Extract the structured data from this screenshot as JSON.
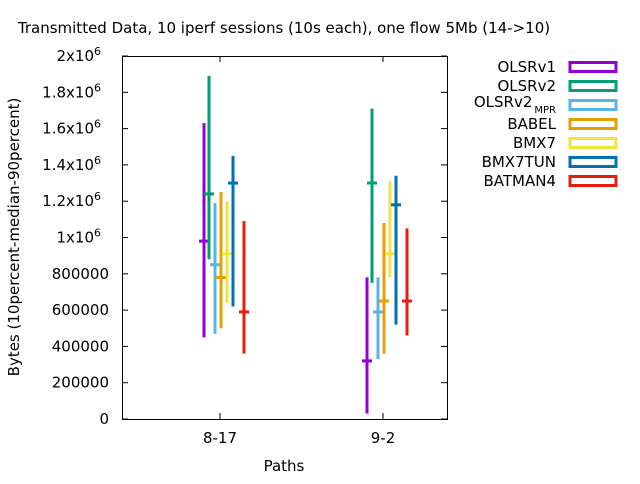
{
  "chart_data": {
    "type": "errorbar",
    "title": "Transmitted Data, 10 iperf sessions (10s each), one flow 5Mb (14->10)",
    "xlabel": "Paths",
    "ylabel": "Bytes (10percent-median-90percent)",
    "categories": [
      "8-17",
      "9-2"
    ],
    "ylim": [
      0,
      2000000
    ],
    "yticks": [
      {
        "value": 0,
        "label": "0"
      },
      {
        "value": 200000,
        "label": "200000"
      },
      {
        "value": 400000,
        "label": "400000"
      },
      {
        "value": 600000,
        "label": "600000"
      },
      {
        "value": 800000,
        "label": "800000"
      },
      {
        "value": 1000000,
        "label": "1x10",
        "exp": "6"
      },
      {
        "value": 1200000,
        "label": "1.2x10",
        "exp": "6"
      },
      {
        "value": 1400000,
        "label": "1.4x10",
        "exp": "6"
      },
      {
        "value": 1600000,
        "label": "1.6x10",
        "exp": "6"
      },
      {
        "value": 1800000,
        "label": "1.8x10",
        "exp": "6"
      },
      {
        "value": 2000000,
        "label": "2x10",
        "exp": "6"
      }
    ],
    "grid": false,
    "legend_position": "outside-right",
    "series": [
      {
        "name": "OLSRv1",
        "color": "#9400d3",
        "low": [
          450000,
          30000
        ],
        "median": [
          980000,
          320000
        ],
        "high": [
          1630000,
          780000
        ]
      },
      {
        "name": "OLSRv2",
        "color": "#009e73",
        "low": [
          880000,
          750000
        ],
        "median": [
          1240000,
          1300000
        ],
        "high": [
          1890000,
          1710000
        ]
      },
      {
        "name": "OLSRv2",
        "sub": "MPR",
        "color": "#56b4e9",
        "low": [
          470000,
          330000
        ],
        "median": [
          850000,
          590000
        ],
        "high": [
          1190000,
          780000
        ]
      },
      {
        "name": "BABEL",
        "color": "#e69f00",
        "low": [
          500000,
          360000
        ],
        "median": [
          780000,
          650000
        ],
        "high": [
          1250000,
          1080000
        ]
      },
      {
        "name": "BMX7",
        "color": "#f0e442",
        "low": [
          640000,
          780000
        ],
        "median": [
          910000,
          910000
        ],
        "high": [
          1200000,
          1310000
        ]
      },
      {
        "name": "BMX7TUN",
        "color": "#0072b2",
        "low": [
          620000,
          520000
        ],
        "median": [
          1300000,
          1180000
        ],
        "high": [
          1450000,
          1340000
        ]
      },
      {
        "name": "BATMAN4",
        "color": "#e51e10",
        "low": [
          360000,
          460000
        ],
        "median": [
          590000,
          650000
        ],
        "high": [
          1090000,
          1050000
        ]
      }
    ]
  }
}
